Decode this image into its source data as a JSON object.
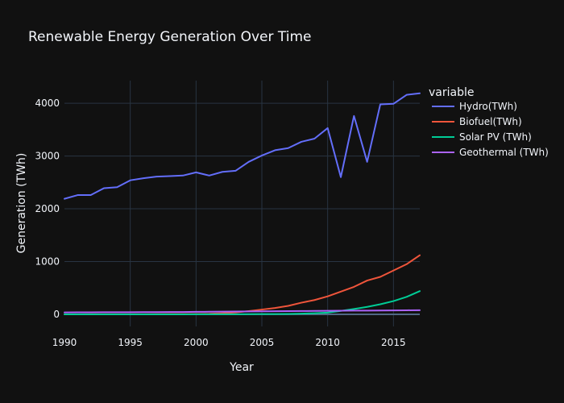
{
  "chart_data": {
    "type": "line",
    "title": "Renewable Energy Generation Over Time",
    "xlabel": "Year",
    "ylabel": "Generation (TWh)",
    "legend_title": "variable",
    "legend_position": "right",
    "grid": true,
    "xlim": [
      1990,
      2017
    ],
    "ylim": [
      -230,
      4430
    ],
    "x_ticks": [
      1990,
      1995,
      2000,
      2005,
      2010,
      2015
    ],
    "y_ticks": [
      0,
      1000,
      2000,
      3000,
      4000
    ],
    "x": [
      1990,
      1991,
      1992,
      1993,
      1994,
      1995,
      1996,
      1997,
      1998,
      1999,
      2000,
      2001,
      2002,
      2003,
      2004,
      2005,
      2006,
      2007,
      2008,
      2009,
      2010,
      2011,
      2012,
      2013,
      2014,
      2015,
      2016,
      2017
    ],
    "series": [
      {
        "name": "Hydro(TWh)",
        "color": "#636efa",
        "values": [
          2190,
          2260,
          2260,
          2390,
          2410,
          2540,
          2580,
          2610,
          2620,
          2630,
          2690,
          2630,
          2700,
          2720,
          2890,
          3010,
          3110,
          3150,
          3270,
          3330,
          3530,
          2600,
          3760,
          2890,
          3980,
          3990,
          4160,
          4190
        ]
      },
      {
        "name": "Biofuel(TWh)",
        "color": "#EF553B",
        "values": [
          0,
          0,
          1,
          1,
          1,
          2,
          2,
          3,
          4,
          5,
          6,
          10,
          20,
          35,
          60,
          90,
          120,
          160,
          220,
          270,
          340,
          430,
          520,
          640,
          710,
          830,
          950,
          1120
        ]
      },
      {
        "name": "Solar PV (TWh)",
        "color": "#00cc96",
        "values": [
          0,
          0,
          0,
          0,
          0,
          0,
          0,
          0,
          0,
          0,
          1,
          1,
          1,
          2,
          3,
          4,
          5,
          7,
          12,
          20,
          32,
          64,
          100,
          140,
          190,
          250,
          330,
          440
        ]
      },
      {
        "name": "Geothermal (TWh)",
        "color": "#ab63fa",
        "values": [
          36,
          37,
          38,
          39,
          40,
          40,
          41,
          42,
          43,
          44,
          47,
          48,
          50,
          52,
          55,
          57,
          58,
          60,
          62,
          64,
          66,
          68,
          70,
          70,
          72,
          73,
          76,
          78
        ]
      }
    ]
  }
}
